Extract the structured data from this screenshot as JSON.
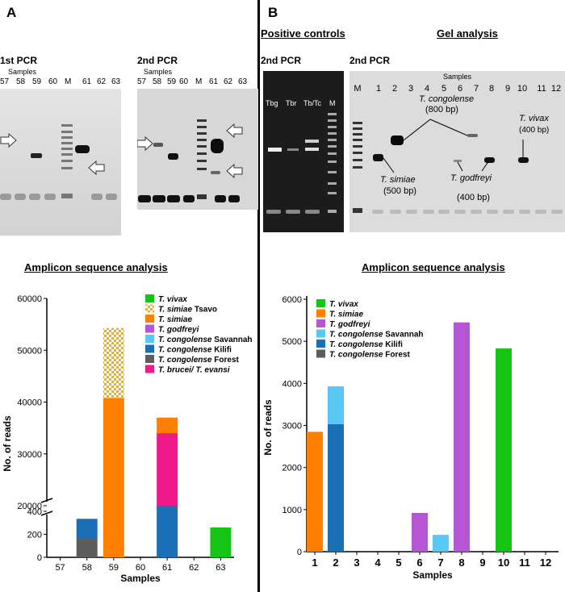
{
  "panelA": {
    "letter": "A",
    "pcr1": {
      "title": "1st PCR",
      "samples_label": "Samples",
      "lanes": [
        "57",
        "58",
        "59",
        "60",
        "M",
        "61",
        "62",
        "63"
      ]
    },
    "pcr2": {
      "title": "2nd PCR",
      "samples_label": "Samples",
      "lanes": [
        "57",
        "58",
        "59",
        "60",
        "M",
        "61",
        "62",
        "63"
      ]
    },
    "amplicon_title": "Amplicon sequence analysis"
  },
  "panelB": {
    "letter": "B",
    "positive_controls_title": "Positive controls",
    "gel_analysis_title": "Gel analysis",
    "pcr_controls": {
      "title": "2nd PCR",
      "lanes": [
        "Tbg",
        "Tbr",
        "Tb/Tc",
        "M"
      ]
    },
    "pcr_gel": {
      "title": "2nd PCR",
      "samples_label": "Samples",
      "lanes": [
        "M",
        "1",
        "2",
        "3",
        "4",
        "5",
        "6",
        "7",
        "8",
        "9",
        "10",
        "11",
        "12"
      ]
    },
    "annotations": {
      "congolense_name": "T. congolense",
      "congolense_size": "(800 bp)",
      "vivax_name": "T. vivax",
      "vivax_size": "(400 bp)",
      "simiae_name": "T. simiae",
      "simiae_size": "(500 bp)",
      "godfreyi_name": "T. godfreyi",
      "godfreyi_size": "(400 bp)"
    },
    "amplicon_title": "Amplicon sequence analysis"
  },
  "colors": {
    "vivax": "#16c416",
    "simiae": "#ff8000",
    "godfreyi": "#b655d6",
    "cong_savannah": "#5ac8f5",
    "cong_kilifi": "#1a6fb7",
    "cong_forest": "#5d5d5d",
    "brucei": "#f0198c",
    "tsavo_hatch": "#d9b04a"
  },
  "chart_data": [
    {
      "type": "bar",
      "stacked": true,
      "xlabel": "Samples",
      "ylabel": "No. of reads",
      "categories": [
        "57",
        "58",
        "59",
        "60",
        "61",
        "62",
        "63"
      ],
      "y_axis_break": {
        "lower_range": [
          0,
          400
        ],
        "upper_range": [
          20000,
          60000
        ]
      },
      "lower_ticks": [
        "0",
        "200",
        "400"
      ],
      "upper_ticks": [
        "20000",
        "30000",
        "40000",
        "50000",
        "60000"
      ],
      "legend_position": "top-right",
      "series": [
        {
          "name": "T. vivax",
          "label_italic": "T. vivax",
          "label_rest": "",
          "color_key": "vivax",
          "values": [
            0,
            0,
            0,
            0,
            0,
            0,
            260
          ]
        },
        {
          "name": "T. simiae Tsavo",
          "label_italic": "T. simiae",
          "label_rest": " Tsavo",
          "color_key": "tsavo_hatch",
          "pattern": "checker",
          "values": [
            0,
            0,
            13500,
            0,
            0,
            0,
            0
          ]
        },
        {
          "name": "T. simiae",
          "label_italic": "T. simiae",
          "label_rest": "",
          "color_key": "simiae",
          "values": [
            0,
            0,
            40800,
            0,
            3000,
            0,
            0
          ]
        },
        {
          "name": "T. godfreyi",
          "label_italic": "T. godfreyi",
          "label_rest": "",
          "color_key": "godfreyi",
          "values": [
            0,
            0,
            0,
            0,
            0,
            0,
            0
          ]
        },
        {
          "name": "T. congolense Savannah",
          "label_italic": "T. congolense",
          "label_rest": " Savannah",
          "color_key": "cong_savannah",
          "values": [
            0,
            0,
            0,
            0,
            0,
            0,
            0
          ]
        },
        {
          "name": "T. congolense Kilifi",
          "label_italic": "T. congolense",
          "label_rest": " Kilifi",
          "color_key": "cong_kilifi",
          "values": [
            0,
            170,
            0,
            0,
            9000,
            0,
            0
          ]
        },
        {
          "name": "T. congolense Forest",
          "label_italic": "T. congolense",
          "label_rest": " Forest",
          "color_key": "cong_forest",
          "values": [
            0,
            165,
            0,
            0,
            0,
            0,
            0
          ]
        },
        {
          "name": "T. brucei/ T. evansi",
          "label_italic": "T. brucei/ T. evansi",
          "label_rest": "",
          "color_key": "brucei",
          "values": [
            0,
            0,
            0,
            0,
            25000,
            0,
            0
          ]
        }
      ]
    },
    {
      "type": "bar",
      "stacked": true,
      "xlabel": "Samples",
      "ylabel": "No. of reads",
      "categories": [
        "1",
        "2",
        "3",
        "4",
        "5",
        "6",
        "7",
        "8",
        "9",
        "10",
        "11",
        "12"
      ],
      "ylim": [
        0,
        6000
      ],
      "yticks": [
        "0",
        "1000",
        "2000",
        "3000",
        "4000",
        "5000",
        "6000"
      ],
      "legend_position": "top-left",
      "series": [
        {
          "name": "T. vivax",
          "label_italic": "T. vivax",
          "label_rest": "",
          "color_key": "vivax",
          "values": [
            0,
            0,
            0,
            0,
            0,
            0,
            0,
            0,
            0,
            4830,
            0,
            0
          ]
        },
        {
          "name": "T. simiae",
          "label_italic": "T. simiae",
          "label_rest": "",
          "color_key": "simiae",
          "values": [
            2850,
            0,
            0,
            0,
            0,
            0,
            0,
            0,
            0,
            0,
            0,
            0
          ]
        },
        {
          "name": "T. godfreyi",
          "label_italic": "T. godfreyi",
          "label_rest": "",
          "color_key": "godfreyi",
          "values": [
            0,
            0,
            0,
            0,
            0,
            920,
            0,
            5450,
            0,
            0,
            0,
            0
          ]
        },
        {
          "name": "T. congolense Savannah",
          "label_italic": "T. congolense",
          "label_rest": " Savannah",
          "color_key": "cong_savannah",
          "values": [
            0,
            900,
            0,
            0,
            0,
            0,
            400,
            0,
            0,
            0,
            0,
            0
          ]
        },
        {
          "name": "T. congolense Kilifi",
          "label_italic": "T. congolense",
          "label_rest": " Kilifi",
          "color_key": "cong_kilifi",
          "values": [
            0,
            3030,
            0,
            0,
            0,
            0,
            0,
            0,
            0,
            0,
            0,
            0
          ]
        },
        {
          "name": "T. congolense Forest",
          "label_italic": "T. congolense",
          "label_rest": " Forest",
          "color_key": "cong_forest",
          "values": [
            0,
            0,
            0,
            0,
            0,
            0,
            0,
            0,
            0,
            0,
            0,
            0
          ]
        }
      ]
    }
  ]
}
